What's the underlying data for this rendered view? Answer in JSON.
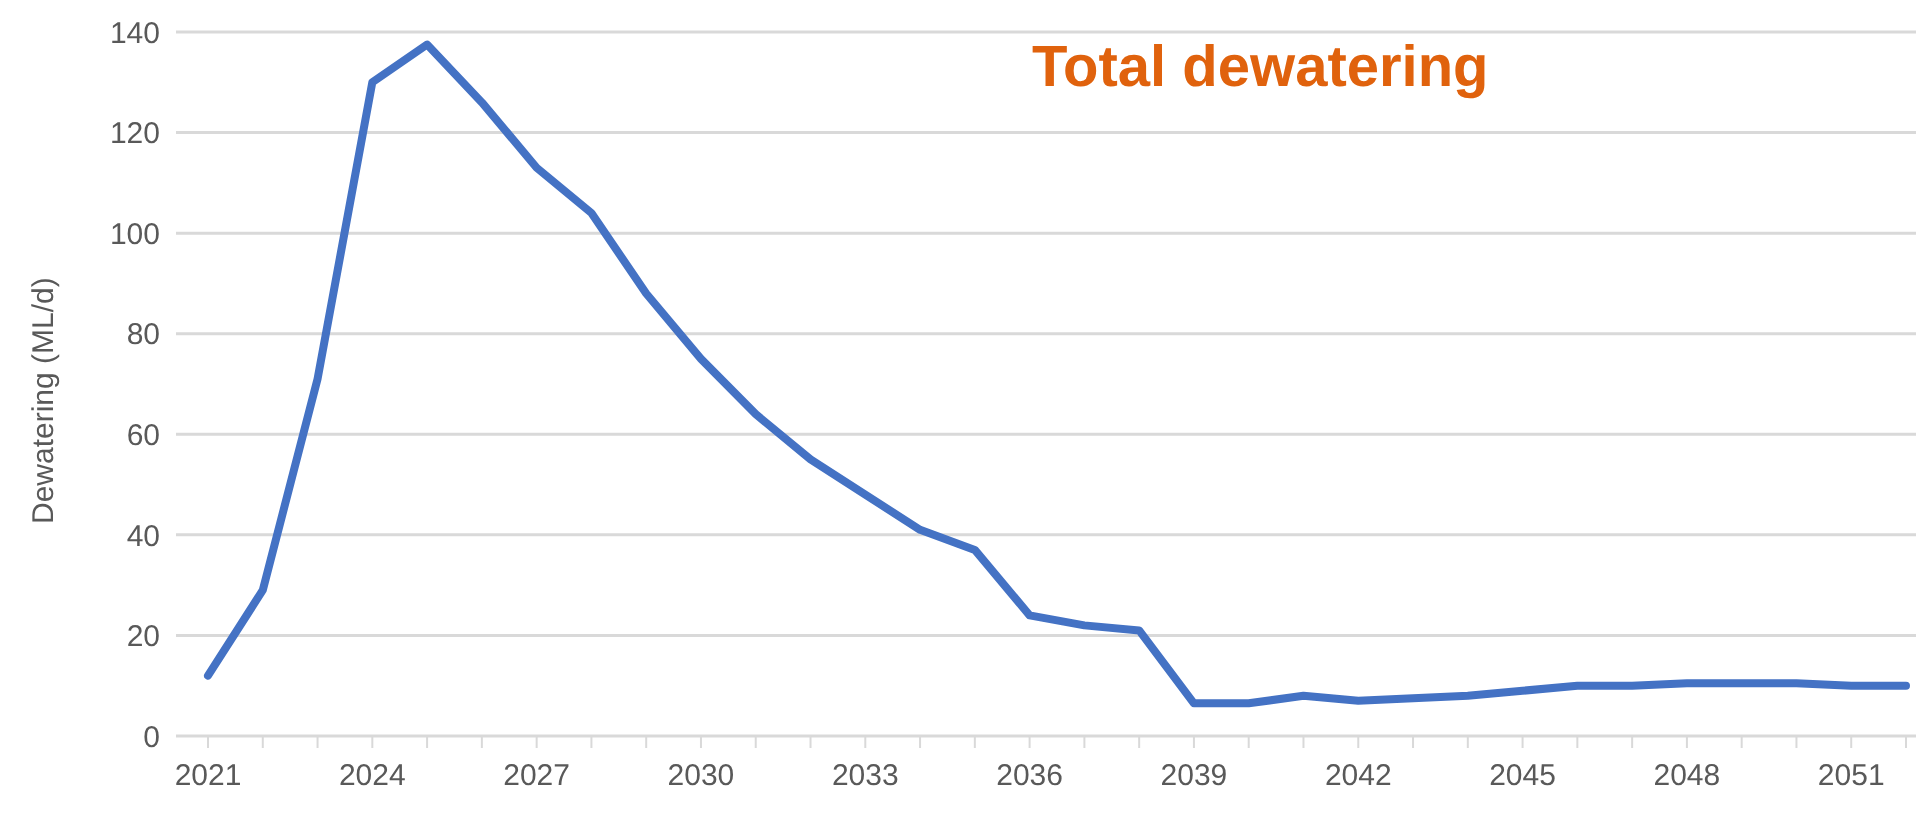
{
  "chart_data": {
    "type": "line",
    "title": "Total dewatering",
    "ylabel": "Dewatering (ML/d)",
    "categories": [
      "2021",
      null,
      null,
      "2024",
      null,
      null,
      "2027",
      null,
      null,
      "2030",
      null,
      null,
      "2033",
      null,
      null,
      "2036",
      null,
      null,
      "2039",
      null,
      null,
      "2042",
      null,
      null,
      "2045",
      null,
      null,
      "2048",
      null,
      null,
      "2051",
      null
    ],
    "series": [
      {
        "color": "#4472c4",
        "values": [
          12,
          29,
          71,
          130,
          137.5,
          126,
          113,
          104,
          88,
          75,
          64,
          55,
          48,
          41,
          37,
          24,
          22,
          21,
          6.5,
          6.5,
          8,
          7,
          7.5,
          8,
          9,
          10,
          10,
          10.5,
          10.5,
          10.5,
          10,
          10
        ]
      }
    ],
    "ylim": [
      0,
      140
    ],
    "yticks": [
      0,
      20,
      40,
      60,
      80,
      100,
      120,
      140
    ],
    "grid": "y",
    "legend": false,
    "marker": "none",
    "line_style": "solid"
  }
}
